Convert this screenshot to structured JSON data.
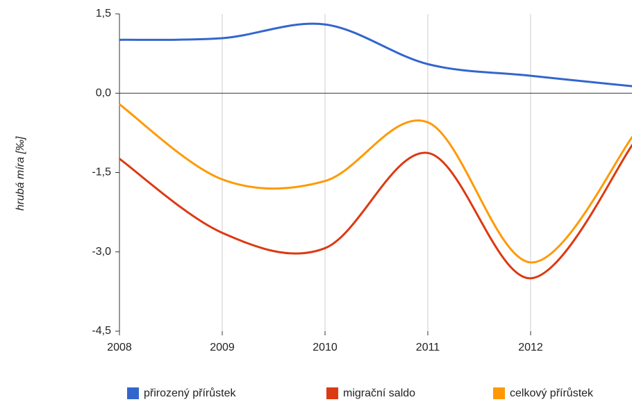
{
  "chart_data": {
    "type": "line",
    "y_label": "hrubá míra [‰]",
    "x": [
      2008,
      2009,
      2010,
      2011,
      2012,
      2013
    ],
    "series": [
      {
        "name": "přirozený přírůstek",
        "color": "#3366cc",
        "values": [
          1.01,
          1.04,
          1.3,
          0.55,
          0.33,
          0.13
        ]
      },
      {
        "name": "migrační saldo",
        "color": "#dc3912",
        "values": [
          -1.24,
          -2.64,
          -2.93,
          -1.13,
          -3.5,
          -0.95
        ]
      },
      {
        "name": "celkový přírůstek",
        "color": "#ff9900",
        "values": [
          -0.21,
          -1.63,
          -1.66,
          -0.55,
          -3.2,
          -0.8
        ]
      }
    ],
    "xlim": [
      2008,
      2013
    ],
    "xticks": [
      2008,
      2009,
      2010,
      2011,
      2012
    ],
    "ylim": [
      -4.5,
      1.5
    ],
    "yticks": [
      {
        "value": -4.5,
        "label": "-4,5"
      },
      {
        "value": -3.0,
        "label": "-3,0"
      },
      {
        "value": -1.5,
        "label": "-1,5"
      },
      {
        "value": 0.0,
        "label": "0,0"
      },
      {
        "value": 1.5,
        "label": "1,5"
      }
    ],
    "grid": true,
    "legend": "bottom"
  }
}
